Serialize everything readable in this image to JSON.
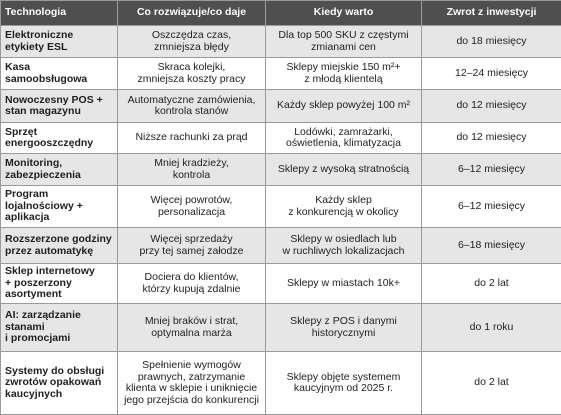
{
  "table": {
    "header": [
      "Technologia",
      "Co rozwiązuje/co daje",
      "Kiedy warto",
      "Zwrot z inwestycji"
    ],
    "rows": [
      [
        [
          "Elektroniczne",
          "etykiety ESL"
        ],
        [
          "Oszczędza czas,",
          "zmniejsza błędy"
        ],
        [
          "Dla top 500 SKU z częstymi",
          "zmianami cen"
        ],
        [
          "do 18 miesięcy"
        ]
      ],
      [
        [
          "Kasa",
          "samoobsługowa"
        ],
        [
          "Skraca kolejki,",
          "zmniejsza koszty pracy"
        ],
        [
          "Sklepy miejskie 150 m²+",
          "z młodą klientelą"
        ],
        [
          "12–24 miesięcy"
        ]
      ],
      [
        [
          "Nowoczesny POS +",
          "stan magazynu"
        ],
        [
          "Automatyczne zamówienia,",
          "kontrola stanów"
        ],
        [
          "Każdy sklep powyżej 100 m²"
        ],
        [
          "do 12 miesięcy"
        ]
      ],
      [
        [
          "Sprzęt",
          "energooszczędny"
        ],
        [
          "Niższe rachunki za prąd"
        ],
        [
          "Lodówki, zamrażarki,",
          "oświetlenia, klimatyzacja"
        ],
        [
          "do 12 miesięcy"
        ]
      ],
      [
        [
          "Monitoring,",
          "zabezpieczenia"
        ],
        [
          "Mniej kradzieży,",
          "kontrola"
        ],
        [
          "Sklepy z wysoką stratnością"
        ],
        [
          "6–12 miesięcy"
        ]
      ],
      [
        [
          "Program",
          "lojalnościowy +",
          "aplikacja"
        ],
        [
          "Więcej powrotów,",
          "personalizacja"
        ],
        [
          "Każdy sklep",
          "z konkurencją w okolicy"
        ],
        [
          "6–12 miesięcy"
        ]
      ],
      [
        [
          "Rozszerzone godziny",
          "przez automatykę"
        ],
        [
          "Więcej sprzedaży",
          "przy tej samej załodze"
        ],
        [
          "Sklepy w osiedlach lub",
          "w ruchliwych lokalizacjach"
        ],
        [
          "6–18 miesięcy"
        ]
      ],
      [
        [
          "Sklep internetowy",
          "+ poszerzony",
          "asortyment"
        ],
        [
          "Dociera do klientów,",
          "którzy kupują zdalnie"
        ],
        [
          "Sklepy w miastach 10k+"
        ],
        [
          "do 2 lat"
        ]
      ],
      [
        [
          "AI: zarządzanie",
          "stanami",
          "i promocjami"
        ],
        [
          "Mniej braków i strat,",
          "optymalna marża"
        ],
        [
          "Sklepy z POS i danymi",
          "historycznymi"
        ],
        [
          "do 1 roku"
        ]
      ],
      [
        [
          "Systemy do obsługi",
          "zwrotów opakowań",
          "kaucyjnych"
        ],
        [
          "Spełnienie wymogów",
          "prawnych, zatrzymanie",
          "klienta w sklepie i uniknięcie",
          "jego przejścia do konkurencji"
        ],
        [
          "Sklepy objęte systemem",
          "kaucyjnym od 2025 r."
        ],
        [
          "do 2 lat"
        ]
      ]
    ]
  }
}
